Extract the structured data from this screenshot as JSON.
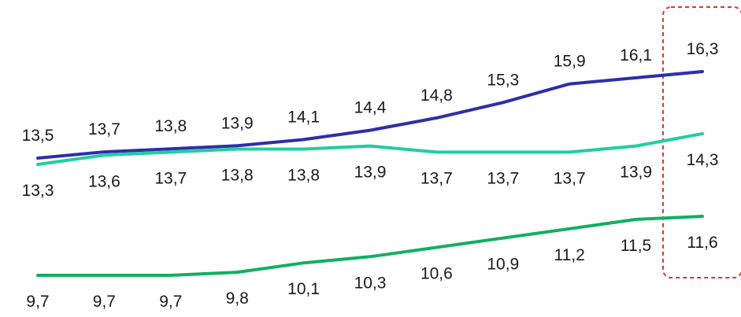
{
  "chart_data": {
    "type": "line",
    "title": "",
    "xlabel": "",
    "ylabel": "",
    "grid": false,
    "legend": "none",
    "x": [
      "1",
      "2",
      "3",
      "4",
      "5",
      "6",
      "7",
      "8",
      "9",
      "10",
      "11"
    ],
    "series": [
      {
        "color": "#2e2eaa",
        "values": [
          13.5,
          13.7,
          13.8,
          13.9,
          14.1,
          14.4,
          14.8,
          15.3,
          15.9,
          16.1,
          16.3
        ],
        "labels": [
          "13,5",
          "13,7",
          "13,8",
          "13,9",
          "14,1",
          "14,4",
          "14,8",
          "15,3",
          "15,9",
          "16,1",
          "16,3"
        ],
        "label_position": "above"
      },
      {
        "color": "#1fcf9f",
        "values": [
          13.3,
          13.6,
          13.7,
          13.8,
          13.8,
          13.9,
          13.7,
          13.7,
          13.7,
          13.9,
          14.3
        ],
        "labels": [
          "13,3",
          "13,6",
          "13,7",
          "13,8",
          "13,8",
          "13,9",
          "13,7",
          "13,7",
          "13,7",
          "13,9",
          "14,3"
        ],
        "label_position": "below"
      },
      {
        "color": "#10b060",
        "values": [
          9.7,
          9.7,
          9.7,
          9.8,
          10.1,
          10.3,
          10.6,
          10.9,
          11.2,
          11.5,
          11.6
        ],
        "labels": [
          "9,7",
          "9,7",
          "9,7",
          "9,8",
          "10,1",
          "10,3",
          "10,6",
          "10,9",
          "11,2",
          "11,5",
          "11,6"
        ],
        "label_position": "below"
      }
    ],
    "highlight": {
      "index": 10,
      "style": "dashed-box",
      "color": "#e53030"
    }
  }
}
